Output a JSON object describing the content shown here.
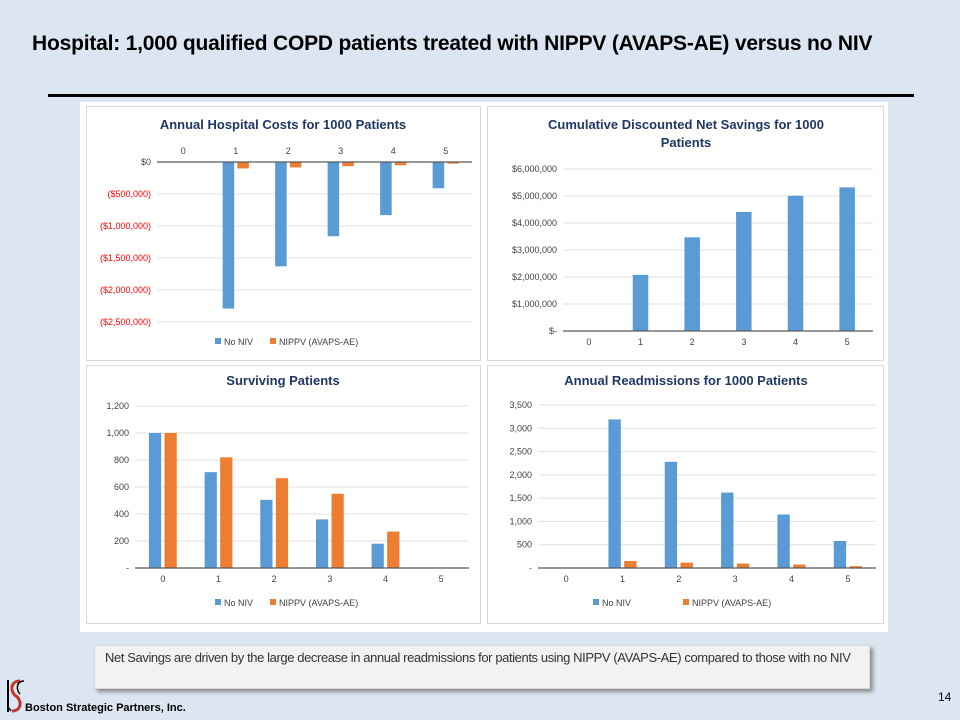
{
  "slide": {
    "title": "Hospital: 1,000 qualified COPD patients treated with NIPPV (AVAPS-AE) versus no NIV",
    "note": "Net Savings are driven by the large decrease in annual readmissions for patients using NIPPV (AVAPS-AE) compared to those with no NIV",
    "company": "Boston Strategic Partners, Inc.",
    "page_number": "14"
  },
  "colors": {
    "no_niv": "#5b9bd5",
    "nippv": "#ed7d31",
    "title": "#1f3864",
    "negative_tick": "#ff0000"
  },
  "chart_data": [
    {
      "id": "hospital-costs",
      "type": "bar",
      "title": "Annual Hospital Costs for 1000 Patients",
      "categories": [
        "0",
        "1",
        "2",
        "3",
        "4",
        "5"
      ],
      "series": [
        {
          "name": "No NIV",
          "values": [
            0,
            -2290000,
            -1630000,
            -1160000,
            -830000,
            -410000
          ]
        },
        {
          "name": "NIPPV (AVAPS-AE)",
          "values": [
            0,
            -100000,
            -85000,
            -65000,
            -50000,
            -25000
          ]
        }
      ],
      "ylim": [
        -2500000,
        0
      ],
      "yticks": [
        0,
        -500000,
        -1000000,
        -1500000,
        -2000000,
        -2500000
      ],
      "ytick_labels": [
        "$0",
        "($500,000)",
        "($1,000,000)",
        "($1,500,000)",
        "($2,000,000)",
        "($2,500,000)"
      ],
      "xaxis_position": "top",
      "grid": true,
      "legend": "bottom",
      "xlabel": "",
      "ylabel": ""
    },
    {
      "id": "net-savings",
      "type": "bar",
      "title": "Cumulative Discounted Net Savings for 1000 Patients",
      "categories": [
        "0",
        "1",
        "2",
        "3",
        "4",
        "5"
      ],
      "series": [
        {
          "name": "Net Savings",
          "values": [
            0,
            2080000,
            3470000,
            4410000,
            5010000,
            5320000
          ]
        }
      ],
      "ylim": [
        0,
        6000000
      ],
      "yticks": [
        0,
        1000000,
        2000000,
        3000000,
        4000000,
        5000000,
        6000000
      ],
      "ytick_labels": [
        "$-",
        "$1,000,000",
        "$2,000,000",
        "$3,000,000",
        "$4,000,000",
        "$5,000,000",
        "$6,000,000"
      ],
      "grid": true,
      "legend": "none",
      "xlabel": "",
      "ylabel": ""
    },
    {
      "id": "surviving-patients",
      "type": "bar",
      "title": "Surviving Patients",
      "categories": [
        "0",
        "1",
        "2",
        "3",
        "4",
        "5"
      ],
      "series": [
        {
          "name": "No NIV",
          "values": [
            1000,
            710,
            505,
            360,
            180,
            0
          ]
        },
        {
          "name": "NIPPV (AVAPS-AE)",
          "values": [
            1000,
            820,
            665,
            550,
            270,
            0
          ]
        }
      ],
      "ylim": [
        0,
        1200
      ],
      "yticks": [
        0,
        200,
        400,
        600,
        800,
        1000,
        1200
      ],
      "ytick_labels": [
        "-",
        "200",
        "400",
        "600",
        "800",
        "1,000",
        "1,200"
      ],
      "grid": true,
      "legend": "bottom",
      "xlabel": "",
      "ylabel": ""
    },
    {
      "id": "readmissions",
      "type": "bar",
      "title": "Annual Readmissions for 1000 Patients",
      "categories": [
        "0",
        "1",
        "2",
        "3",
        "4",
        "5"
      ],
      "series": [
        {
          "name": "No NIV",
          "values": [
            0,
            3190,
            2280,
            1620,
            1150,
            580
          ]
        },
        {
          "name": "NIPPV (AVAPS-AE)",
          "values": [
            0,
            150,
            115,
            95,
            75,
            40
          ]
        }
      ],
      "ylim": [
        0,
        3500
      ],
      "yticks": [
        0,
        500,
        1000,
        1500,
        2000,
        2500,
        3000,
        3500
      ],
      "ytick_labels": [
        "-",
        "500",
        "1,000",
        "1,500",
        "2,000",
        "2,500",
        "3,000",
        "3,500"
      ],
      "grid": true,
      "legend": "bottom",
      "xlabel": "",
      "ylabel": ""
    }
  ]
}
